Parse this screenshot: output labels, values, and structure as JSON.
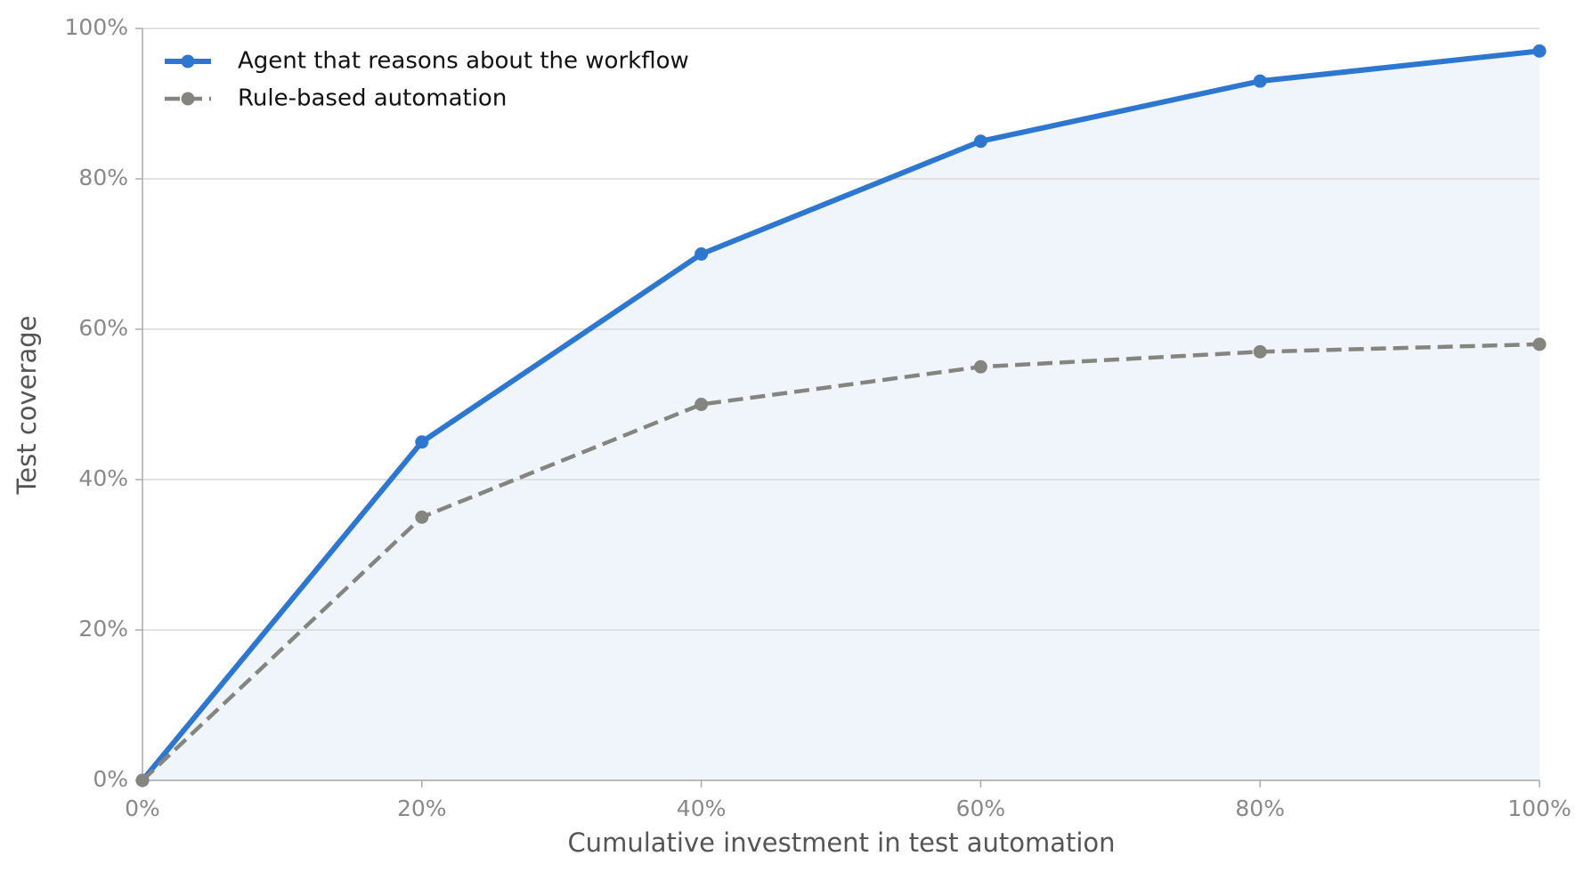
{
  "chart_data": {
    "type": "line",
    "xlabel": "Cumulative investment in test automation",
    "ylabel": "Test coverage",
    "x": [
      0,
      20,
      40,
      60,
      80,
      100
    ],
    "series": [
      {
        "name": "Agent that reasons about the workflow",
        "color": "#2e77d0",
        "line_style": "solid",
        "fill": true,
        "values": [
          0,
          45,
          70,
          85,
          93,
          97
        ]
      },
      {
        "name": "Rule-based automation",
        "color": "#858580",
        "line_style": "dashed",
        "fill": false,
        "values": [
          0,
          35,
          50,
          55,
          57,
          58
        ]
      }
    ],
    "xlim": [
      0,
      100
    ],
    "ylim": [
      0,
      100
    ],
    "xticks": [
      {
        "value": 0,
        "label": "0%"
      },
      {
        "value": 20,
        "label": "20%"
      },
      {
        "value": 40,
        "label": "40%"
      },
      {
        "value": 60,
        "label": "60%"
      },
      {
        "value": 80,
        "label": "80%"
      },
      {
        "value": 100,
        "label": "100%"
      }
    ],
    "yticks": [
      {
        "value": 0,
        "label": "0%"
      },
      {
        "value": 20,
        "label": "20%"
      },
      {
        "value": 40,
        "label": "40%"
      },
      {
        "value": 60,
        "label": "60%"
      },
      {
        "value": 80,
        "label": "80%"
      },
      {
        "value": 100,
        "label": "100%"
      }
    ],
    "grid": "y",
    "legend": "upper left"
  }
}
